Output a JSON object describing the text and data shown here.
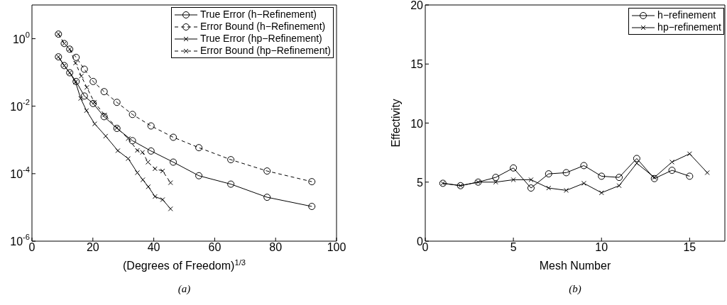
{
  "chart_data": [
    {
      "type": "line",
      "xlabel": "(Degrees of Freedom)$^{1/3}$",
      "log": "y",
      "xlim": [
        0,
        100
      ],
      "xticks": [
        0,
        20,
        40,
        60,
        80,
        100
      ],
      "ylim": [
        1e-06,
        10
      ],
      "yticks": [
        {
          "value": 1e-06,
          "label": "10$^{-6}$"
        },
        {
          "value": 0.0001,
          "label": "10$^{-4}$"
        },
        {
          "value": 0.01,
          "label": "10$^{-2}$"
        },
        {
          "value": 1,
          "label": "10$^{0}$"
        }
      ],
      "legend": "top right",
      "annotations": [
        "(a)"
      ],
      "series": [
        {
          "name": "True Error (h−Refinement)",
          "color": "#000000",
          "marker": "circle",
          "line_style": "solid",
          "x": [
            8.7,
            10.6,
            12.4,
            14.5,
            17.2,
            20.1,
            23.7,
            27.9,
            33.0,
            39.1,
            46.4,
            54.8,
            65.3,
            77.2,
            91.9
          ],
          "values": [
            0.29,
            0.16,
            0.098,
            0.054,
            0.02,
            0.012,
            0.0049,
            0.0022,
            0.00095,
            0.00047,
            0.00022,
            8.7e-05,
            4.9e-05,
            2e-05,
            1.07e-05
          ]
        },
        {
          "name": "Error Bound (h−Refinement)",
          "color": "#000000",
          "marker": "circle",
          "line_style": "dashed",
          "x": [
            8.7,
            10.6,
            12.4,
            14.5,
            17.2,
            20.1,
            23.7,
            27.9,
            33.0,
            39.1,
            46.4,
            54.8,
            65.3,
            77.2,
            91.9
          ],
          "values": [
            1.37,
            0.72,
            0.49,
            0.28,
            0.125,
            0.054,
            0.027,
            0.013,
            0.0057,
            0.0026,
            0.0012,
            0.00059,
            0.00026,
            0.00012,
            5.8e-05
          ]
        },
        {
          "name": "True Error (hp−Refinement)",
          "color": "#000000",
          "marker": "cross",
          "line_style": "solid",
          "x": [
            8.7,
            10.6,
            12.4,
            14.3,
            16.0,
            17.9,
            20.6,
            24.2,
            28.2,
            31.6,
            34.6,
            36.4,
            38.2,
            40.4,
            42.9,
            45.5
          ],
          "values": [
            0.29,
            0.16,
            0.098,
            0.052,
            0.017,
            0.0074,
            0.003,
            0.0013,
            0.00048,
            0.00028,
            0.000107,
            6.6e-05,
            4.1e-05,
            2.1e-05,
            1.7e-05,
            9.1e-06
          ]
        },
        {
          "name": "Error Bound (hp−Refinement)",
          "color": "#000000",
          "marker": "cross",
          "line_style": "dashed",
          "x": [
            8.7,
            10.6,
            12.4,
            14.3,
            16.2,
            18.0,
            20.5,
            23.9,
            27.9,
            31.6,
            34.6,
            36.3,
            38.1,
            40.4,
            42.9,
            45.5
          ],
          "values": [
            1.37,
            0.72,
            0.49,
            0.19,
            0.078,
            0.036,
            0.013,
            0.0055,
            0.0023,
            0.0011,
            0.00049,
            0.00043,
            0.00022,
            0.00014,
            0.00012,
            5.4e-05
          ]
        }
      ]
    },
    {
      "type": "line",
      "xlabel": "Mesh Number",
      "ylabel": "Effectivity",
      "xlim": [
        0,
        17
      ],
      "xticks": [
        0,
        5,
        10,
        15
      ],
      "ylim": [
        0,
        20
      ],
      "yticks": [
        0,
        5,
        10,
        15,
        20
      ],
      "legend": "top right",
      "annotations": [
        "(b)"
      ],
      "series": [
        {
          "name": "h−refinement",
          "color": "#000000",
          "marker": "circle",
          "line_style": "solid",
          "x": [
            1,
            2,
            3,
            4,
            5,
            6,
            7,
            8,
            9,
            10,
            11,
            12,
            13,
            14,
            15
          ],
          "values": [
            4.9,
            4.7,
            5.0,
            5.4,
            6.2,
            4.5,
            5.7,
            5.8,
            6.4,
            5.5,
            5.4,
            7.0,
            5.3,
            6.0,
            5.5
          ]
        },
        {
          "name": "hp−refinement",
          "color": "#000000",
          "marker": "cross",
          "line_style": "solid",
          "x": [
            1,
            2,
            3,
            4,
            5,
            6,
            7,
            8,
            9,
            10,
            11,
            12,
            13,
            14,
            15,
            16
          ],
          "values": [
            4.9,
            4.7,
            5.0,
            5.0,
            5.2,
            5.2,
            4.5,
            4.3,
            4.9,
            4.1,
            4.7,
            6.6,
            5.4,
            6.7,
            7.4,
            5.8
          ]
        }
      ]
    }
  ]
}
